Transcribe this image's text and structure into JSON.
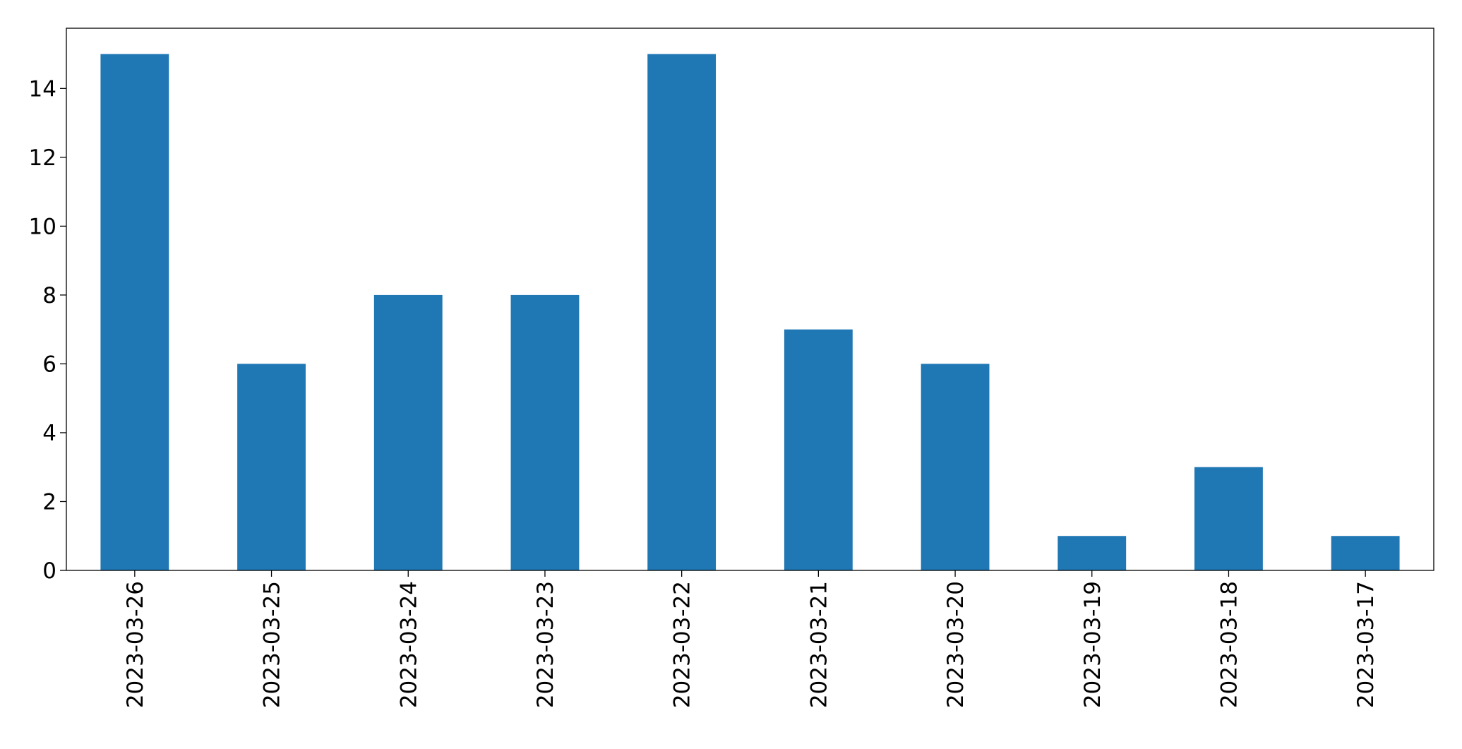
{
  "chart_data": {
    "type": "bar",
    "categories": [
      "2023-03-26",
      "2023-03-25",
      "2023-03-24",
      "2023-03-23",
      "2023-03-22",
      "2023-03-21",
      "2023-03-20",
      "2023-03-19",
      "2023-03-18",
      "2023-03-17"
    ],
    "values": [
      15,
      6,
      8,
      8,
      15,
      7,
      6,
      1,
      3,
      1
    ],
    "color": "#1f77b4",
    "ylim": [
      0,
      15.75
    ],
    "yticks": [
      0,
      2,
      4,
      6,
      8,
      10,
      12,
      14
    ],
    "grid": false
  }
}
